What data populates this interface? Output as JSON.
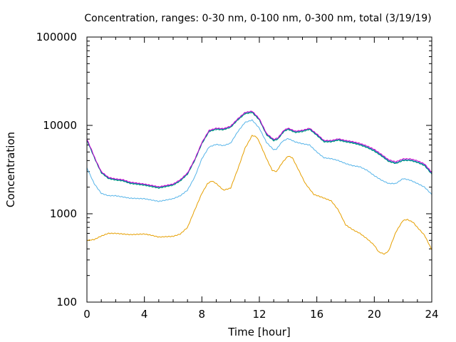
{
  "chart_data": {
    "type": "line",
    "title": "Concentration, ranges: 0-30 nm, 0-100 nm, 0-300 nm, total (3/19/19)",
    "xlabel": "Time [hour]",
    "ylabel": "Concentration",
    "xlim": [
      0,
      24
    ],
    "ylim": [
      100,
      100000
    ],
    "yscale": "log",
    "grid": false,
    "legend": "none",
    "x_ticks": [
      0,
      4,
      8,
      12,
      16,
      20,
      24
    ],
    "x_tick_labels": [
      "0",
      "4",
      "8",
      "12",
      "16",
      "20",
      "24"
    ],
    "y_ticks": [
      100,
      1000,
      10000,
      100000
    ],
    "y_tick_labels": [
      "100",
      "1000",
      "10000",
      "100000"
    ],
    "series": [
      {
        "color": "#e69f00",
        "points": [
          [
            0,
            500
          ],
          [
            0.5,
            510
          ],
          [
            1,
            560
          ],
          [
            1.5,
            600
          ],
          [
            2,
            600
          ],
          [
            3,
            580
          ],
          [
            4,
            590
          ],
          [
            4.5,
            570
          ],
          [
            5,
            545
          ],
          [
            5.5,
            550
          ],
          [
            6,
            555
          ],
          [
            6.5,
            590
          ],
          [
            7,
            700
          ],
          [
            7.5,
            1100
          ],
          [
            8,
            1700
          ],
          [
            8.4,
            2200
          ],
          [
            8.7,
            2350
          ],
          [
            9,
            2200
          ],
          [
            9.5,
            1850
          ],
          [
            10,
            1950
          ],
          [
            10.5,
            3200
          ],
          [
            11,
            5500
          ],
          [
            11.5,
            7700
          ],
          [
            11.8,
            7400
          ],
          [
            12,
            6500
          ],
          [
            12.5,
            4200
          ],
          [
            12.9,
            3100
          ],
          [
            13.2,
            3000
          ],
          [
            13.6,
            3800
          ],
          [
            14,
            4500
          ],
          [
            14.3,
            4300
          ],
          [
            14.7,
            3200
          ],
          [
            15.2,
            2200
          ],
          [
            15.8,
            1650
          ],
          [
            16.3,
            1550
          ],
          [
            17,
            1400
          ],
          [
            17.5,
            1100
          ],
          [
            18,
            750
          ],
          [
            18.5,
            660
          ],
          [
            19,
            600
          ],
          [
            19.5,
            520
          ],
          [
            20,
            440
          ],
          [
            20.3,
            370
          ],
          [
            20.7,
            350
          ],
          [
            21,
            380
          ],
          [
            21.5,
            620
          ],
          [
            22,
            840
          ],
          [
            22.3,
            860
          ],
          [
            22.7,
            800
          ],
          [
            23,
            700
          ],
          [
            23.5,
            570
          ],
          [
            24,
            390
          ]
        ]
      },
      {
        "color": "#56b4e9",
        "points": [
          [
            0,
            3300
          ],
          [
            0.5,
            2200
          ],
          [
            1,
            1700
          ],
          [
            1.5,
            1600
          ],
          [
            2,
            1600
          ],
          [
            3,
            1500
          ],
          [
            4,
            1480
          ],
          [
            5,
            1380
          ],
          [
            6,
            1480
          ],
          [
            6.5,
            1600
          ],
          [
            7,
            1850
          ],
          [
            7.5,
            2600
          ],
          [
            8,
            4200
          ],
          [
            8.5,
            5700
          ],
          [
            9,
            6100
          ],
          [
            9.5,
            5900
          ],
          [
            10,
            6300
          ],
          [
            10.5,
            8500
          ],
          [
            11,
            10800
          ],
          [
            11.5,
            11500
          ],
          [
            12,
            9300
          ],
          [
            12.5,
            6400
          ],
          [
            13,
            5300
          ],
          [
            13.2,
            5400
          ],
          [
            13.6,
            6600
          ],
          [
            14,
            7100
          ],
          [
            14.5,
            6500
          ],
          [
            15,
            6200
          ],
          [
            15.5,
            6000
          ],
          [
            16,
            5000
          ],
          [
            16.5,
            4300
          ],
          [
            17,
            4200
          ],
          [
            17.5,
            4000
          ],
          [
            18,
            3700
          ],
          [
            18.5,
            3500
          ],
          [
            19,
            3400
          ],
          [
            19.5,
            3100
          ],
          [
            20,
            2700
          ],
          [
            20.5,
            2400
          ],
          [
            21,
            2200
          ],
          [
            21.5,
            2200
          ],
          [
            22,
            2500
          ],
          [
            22.5,
            2400
          ],
          [
            23,
            2200
          ],
          [
            23.5,
            2000
          ],
          [
            24,
            1650
          ]
        ]
      },
      {
        "color": "#009e73",
        "points": [
          [
            0,
            6800
          ],
          [
            0.3,
            5200
          ],
          [
            0.6,
            4000
          ],
          [
            1,
            2900
          ],
          [
            1.5,
            2500
          ],
          [
            2,
            2400
          ],
          [
            2.5,
            2350
          ],
          [
            3,
            2200
          ],
          [
            4,
            2100
          ],
          [
            5,
            1950
          ],
          [
            6,
            2100
          ],
          [
            6.5,
            2350
          ],
          [
            7,
            2800
          ],
          [
            7.5,
            4000
          ],
          [
            8,
            6200
          ],
          [
            8.5,
            8500
          ],
          [
            9,
            9000
          ],
          [
            9.5,
            8900
          ],
          [
            10,
            9500
          ],
          [
            10.5,
            11500
          ],
          [
            11,
            13500
          ],
          [
            11.5,
            14000
          ],
          [
            12,
            11500
          ],
          [
            12.5,
            7800
          ],
          [
            13,
            6700
          ],
          [
            13.3,
            7000
          ],
          [
            13.7,
            8500
          ],
          [
            14,
            9000
          ],
          [
            14.5,
            8300
          ],
          [
            15,
            8500
          ],
          [
            15.5,
            9000
          ],
          [
            16,
            7700
          ],
          [
            16.5,
            6500
          ],
          [
            17,
            6500
          ],
          [
            17.5,
            6800
          ],
          [
            18,
            6500
          ],
          [
            18.5,
            6300
          ],
          [
            19,
            6000
          ],
          [
            19.5,
            5600
          ],
          [
            20,
            5100
          ],
          [
            20.5,
            4500
          ],
          [
            21,
            3900
          ],
          [
            21.5,
            3700
          ],
          [
            22,
            4000
          ],
          [
            22.5,
            4000
          ],
          [
            23,
            3800
          ],
          [
            23.5,
            3500
          ],
          [
            24,
            2800
          ]
        ]
      },
      {
        "color": "#0072b2",
        "points": [
          [
            0,
            6900
          ],
          [
            0.3,
            5300
          ],
          [
            0.6,
            4050
          ],
          [
            1,
            2950
          ],
          [
            1.5,
            2540
          ],
          [
            2,
            2440
          ],
          [
            2.5,
            2390
          ],
          [
            3,
            2240
          ],
          [
            4,
            2140
          ],
          [
            5,
            1990
          ],
          [
            6,
            2140
          ],
          [
            6.5,
            2390
          ],
          [
            7,
            2850
          ],
          [
            7.5,
            4060
          ],
          [
            8,
            6300
          ],
          [
            8.5,
            8650
          ],
          [
            9,
            9150
          ],
          [
            9.5,
            9050
          ],
          [
            10,
            9650
          ],
          [
            10.5,
            11700
          ],
          [
            11,
            13800
          ],
          [
            11.5,
            14300
          ],
          [
            12,
            11700
          ],
          [
            12.5,
            7950
          ],
          [
            13,
            6820
          ],
          [
            13.3,
            7120
          ],
          [
            13.7,
            8650
          ],
          [
            14,
            9150
          ],
          [
            14.5,
            8450
          ],
          [
            15,
            8650
          ],
          [
            15.5,
            9150
          ],
          [
            16,
            7850
          ],
          [
            16.5,
            6620
          ],
          [
            17,
            6620
          ],
          [
            17.5,
            6920
          ],
          [
            18,
            6620
          ],
          [
            18.5,
            6420
          ],
          [
            19,
            6100
          ],
          [
            19.5,
            5700
          ],
          [
            20,
            5200
          ],
          [
            20.5,
            4580
          ],
          [
            21,
            3970
          ],
          [
            21.5,
            3760
          ],
          [
            22,
            4060
          ],
          [
            22.5,
            4060
          ],
          [
            23,
            3860
          ],
          [
            23.5,
            3560
          ],
          [
            24,
            2850
          ]
        ]
      },
      {
        "color": "#cc00cc",
        "points": [
          [
            0,
            7000
          ],
          [
            0.3,
            5400
          ],
          [
            0.6,
            4100
          ],
          [
            1,
            3000
          ],
          [
            1.5,
            2580
          ],
          [
            2,
            2480
          ],
          [
            2.5,
            2430
          ],
          [
            3,
            2280
          ],
          [
            4,
            2170
          ],
          [
            5,
            2020
          ],
          [
            6,
            2170
          ],
          [
            6.5,
            2430
          ],
          [
            7,
            2900
          ],
          [
            7.5,
            4120
          ],
          [
            8,
            6400
          ],
          [
            8.5,
            8780
          ],
          [
            9,
            9300
          ],
          [
            9.5,
            9200
          ],
          [
            10,
            9800
          ],
          [
            10.5,
            11900
          ],
          [
            11,
            14000
          ],
          [
            11.5,
            14500
          ],
          [
            12,
            11900
          ],
          [
            12.5,
            8100
          ],
          [
            13,
            6950
          ],
          [
            13.3,
            7250
          ],
          [
            13.7,
            8800
          ],
          [
            14,
            9300
          ],
          [
            14.5,
            8600
          ],
          [
            15,
            8800
          ],
          [
            15.5,
            9300
          ],
          [
            16,
            8000
          ],
          [
            16.5,
            6750
          ],
          [
            17,
            6750
          ],
          [
            17.5,
            7050
          ],
          [
            18,
            6750
          ],
          [
            18.5,
            6550
          ],
          [
            19,
            6250
          ],
          [
            19.5,
            5850
          ],
          [
            20,
            5350
          ],
          [
            20.5,
            4700
          ],
          [
            21,
            4080
          ],
          [
            21.5,
            3870
          ],
          [
            22,
            4180
          ],
          [
            22.5,
            4180
          ],
          [
            23,
            3980
          ],
          [
            23.5,
            3660
          ],
          [
            24,
            2930
          ]
        ]
      }
    ]
  }
}
